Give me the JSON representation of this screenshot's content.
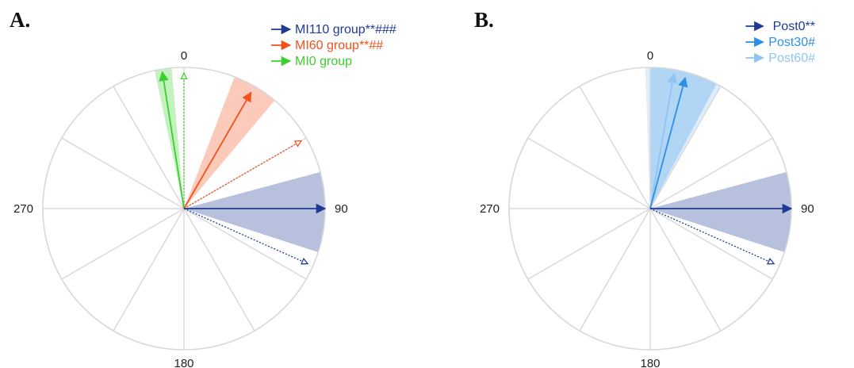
{
  "panels": [
    {
      "letter": "A.",
      "chart_data": {
        "type": "polar-vector",
        "angle_ticks": [
          "0",
          "90",
          "180",
          "270"
        ],
        "sector_step_deg": 30,
        "legend_position": "top-right",
        "series": [
          {
            "name": "MI110 group**###",
            "color": "#1f3a93",
            "mean_angle_deg": 90,
            "length": 1.0,
            "sem_range_deg": [
              75,
              108
            ],
            "marker_angle_deg": 114,
            "marker_length": 1.0
          },
          {
            "name": "MI60 group**##",
            "color": "#f2511b",
            "mean_angle_deg": 30,
            "length": 0.95,
            "sem_range_deg": [
              21,
              40
            ],
            "marker_angle_deg": 60,
            "marker_length": 1.0
          },
          {
            "name": "MI0 group",
            "color": "#3ccf2e",
            "mean_angle_deg": -9,
            "length": 0.98,
            "sem_range_deg": [
              -12,
              -5
            ],
            "marker_angle_deg": 0,
            "marker_length": 1.0
          }
        ]
      }
    },
    {
      "letter": "B.",
      "chart_data": {
        "type": "polar-vector",
        "angle_ticks": [
          "0",
          "90",
          "180",
          "270"
        ],
        "sector_step_deg": 30,
        "legend_position": "top-right",
        "series": [
          {
            "name": "Post0**",
            "color": "#1f3a93",
            "mean_angle_deg": 90,
            "length": 1.0,
            "sem_range_deg": [
              75,
              108
            ],
            "marker_angle_deg": 114,
            "marker_length": 1.0
          },
          {
            "name": "Post30#",
            "color": "#2e8fe6",
            "mean_angle_deg": 15,
            "length": 0.96,
            "sem_range_deg": [
              0,
              28
            ],
            "marker_angle_deg": null,
            "marker_length": null
          },
          {
            "name": "Post60#",
            "color": "#8fc4f2",
            "mean_angle_deg": 10,
            "length": 0.97,
            "sem_range_deg": [
              -2,
              30
            ],
            "marker_angle_deg": null,
            "marker_length": null
          }
        ]
      }
    }
  ]
}
